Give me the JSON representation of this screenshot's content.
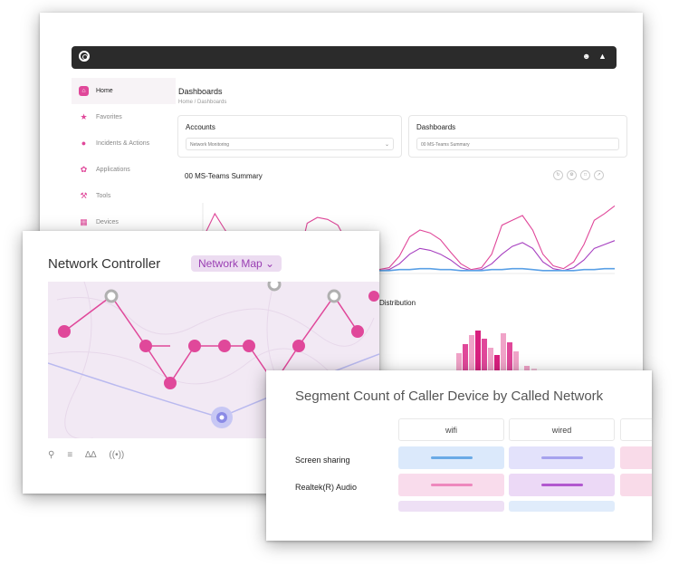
{
  "dashboard": {
    "sidebar": {
      "items": [
        {
          "label": "Home",
          "icon": "home-icon",
          "active": true
        },
        {
          "label": "Favorites",
          "icon": "star-icon"
        },
        {
          "label": "Incidents & Actions",
          "icon": "incident-icon"
        },
        {
          "label": "Applications",
          "icon": "applications-icon"
        },
        {
          "label": "Tools",
          "icon": "wrench-icon"
        },
        {
          "label": "Devices",
          "icon": "devices-icon"
        }
      ]
    },
    "page_title": "Dashboards",
    "breadcrumb": "Home / Dashboards",
    "filters": {
      "accounts": {
        "label": "Accounts",
        "value": "Network Monitoring"
      },
      "dashboards": {
        "label": "Dashboards",
        "value": "00 MS-Teams Summary"
      }
    },
    "chart_title": "00 MS-Teams Summary",
    "distribution_title": "Distribution",
    "colors": {
      "accent": "#e0489a",
      "purple": "#a63fc0",
      "blue": "#5aa0e6"
    }
  },
  "network": {
    "title": "Network Controller",
    "view_select": "Network Map"
  },
  "segment": {
    "title": "Segment Count of Caller Device by Called Network",
    "columns": [
      "wifi",
      "wired"
    ],
    "rows": [
      "Screen sharing",
      "Realtek(R) Audio"
    ]
  },
  "chart_data": {
    "type": "line",
    "series": [
      {
        "values": [
          40,
          62,
          45,
          30,
          12,
          6,
          4,
          5,
          8,
          6,
          52,
          58,
          56,
          50,
          30,
          10,
          5,
          4,
          6,
          18,
          38,
          45,
          42,
          35,
          22,
          10,
          4,
          6,
          20,
          50,
          55,
          60,
          45,
          20,
          8,
          5,
          12,
          30,
          55,
          62,
          70
        ]
      },
      {
        "values": [
          20,
          30,
          26,
          18,
          8,
          4,
          3,
          4,
          5,
          4,
          22,
          28,
          34,
          40,
          24,
          8,
          4,
          3,
          4,
          10,
          20,
          26,
          24,
          20,
          14,
          6,
          3,
          4,
          10,
          20,
          28,
          32,
          26,
          12,
          5,
          3,
          6,
          14,
          26,
          30,
          34
        ]
      },
      {
        "values": [
          4,
          5,
          4,
          4,
          3,
          3,
          3,
          3,
          3,
          3,
          4,
          5,
          5,
          5,
          4,
          3,
          3,
          3,
          3,
          4,
          4,
          5,
          5,
          4,
          4,
          3,
          3,
          3,
          4,
          4,
          5,
          5,
          4,
          3,
          3,
          3,
          3,
          4,
          4,
          5,
          5
        ]
      }
    ]
  }
}
